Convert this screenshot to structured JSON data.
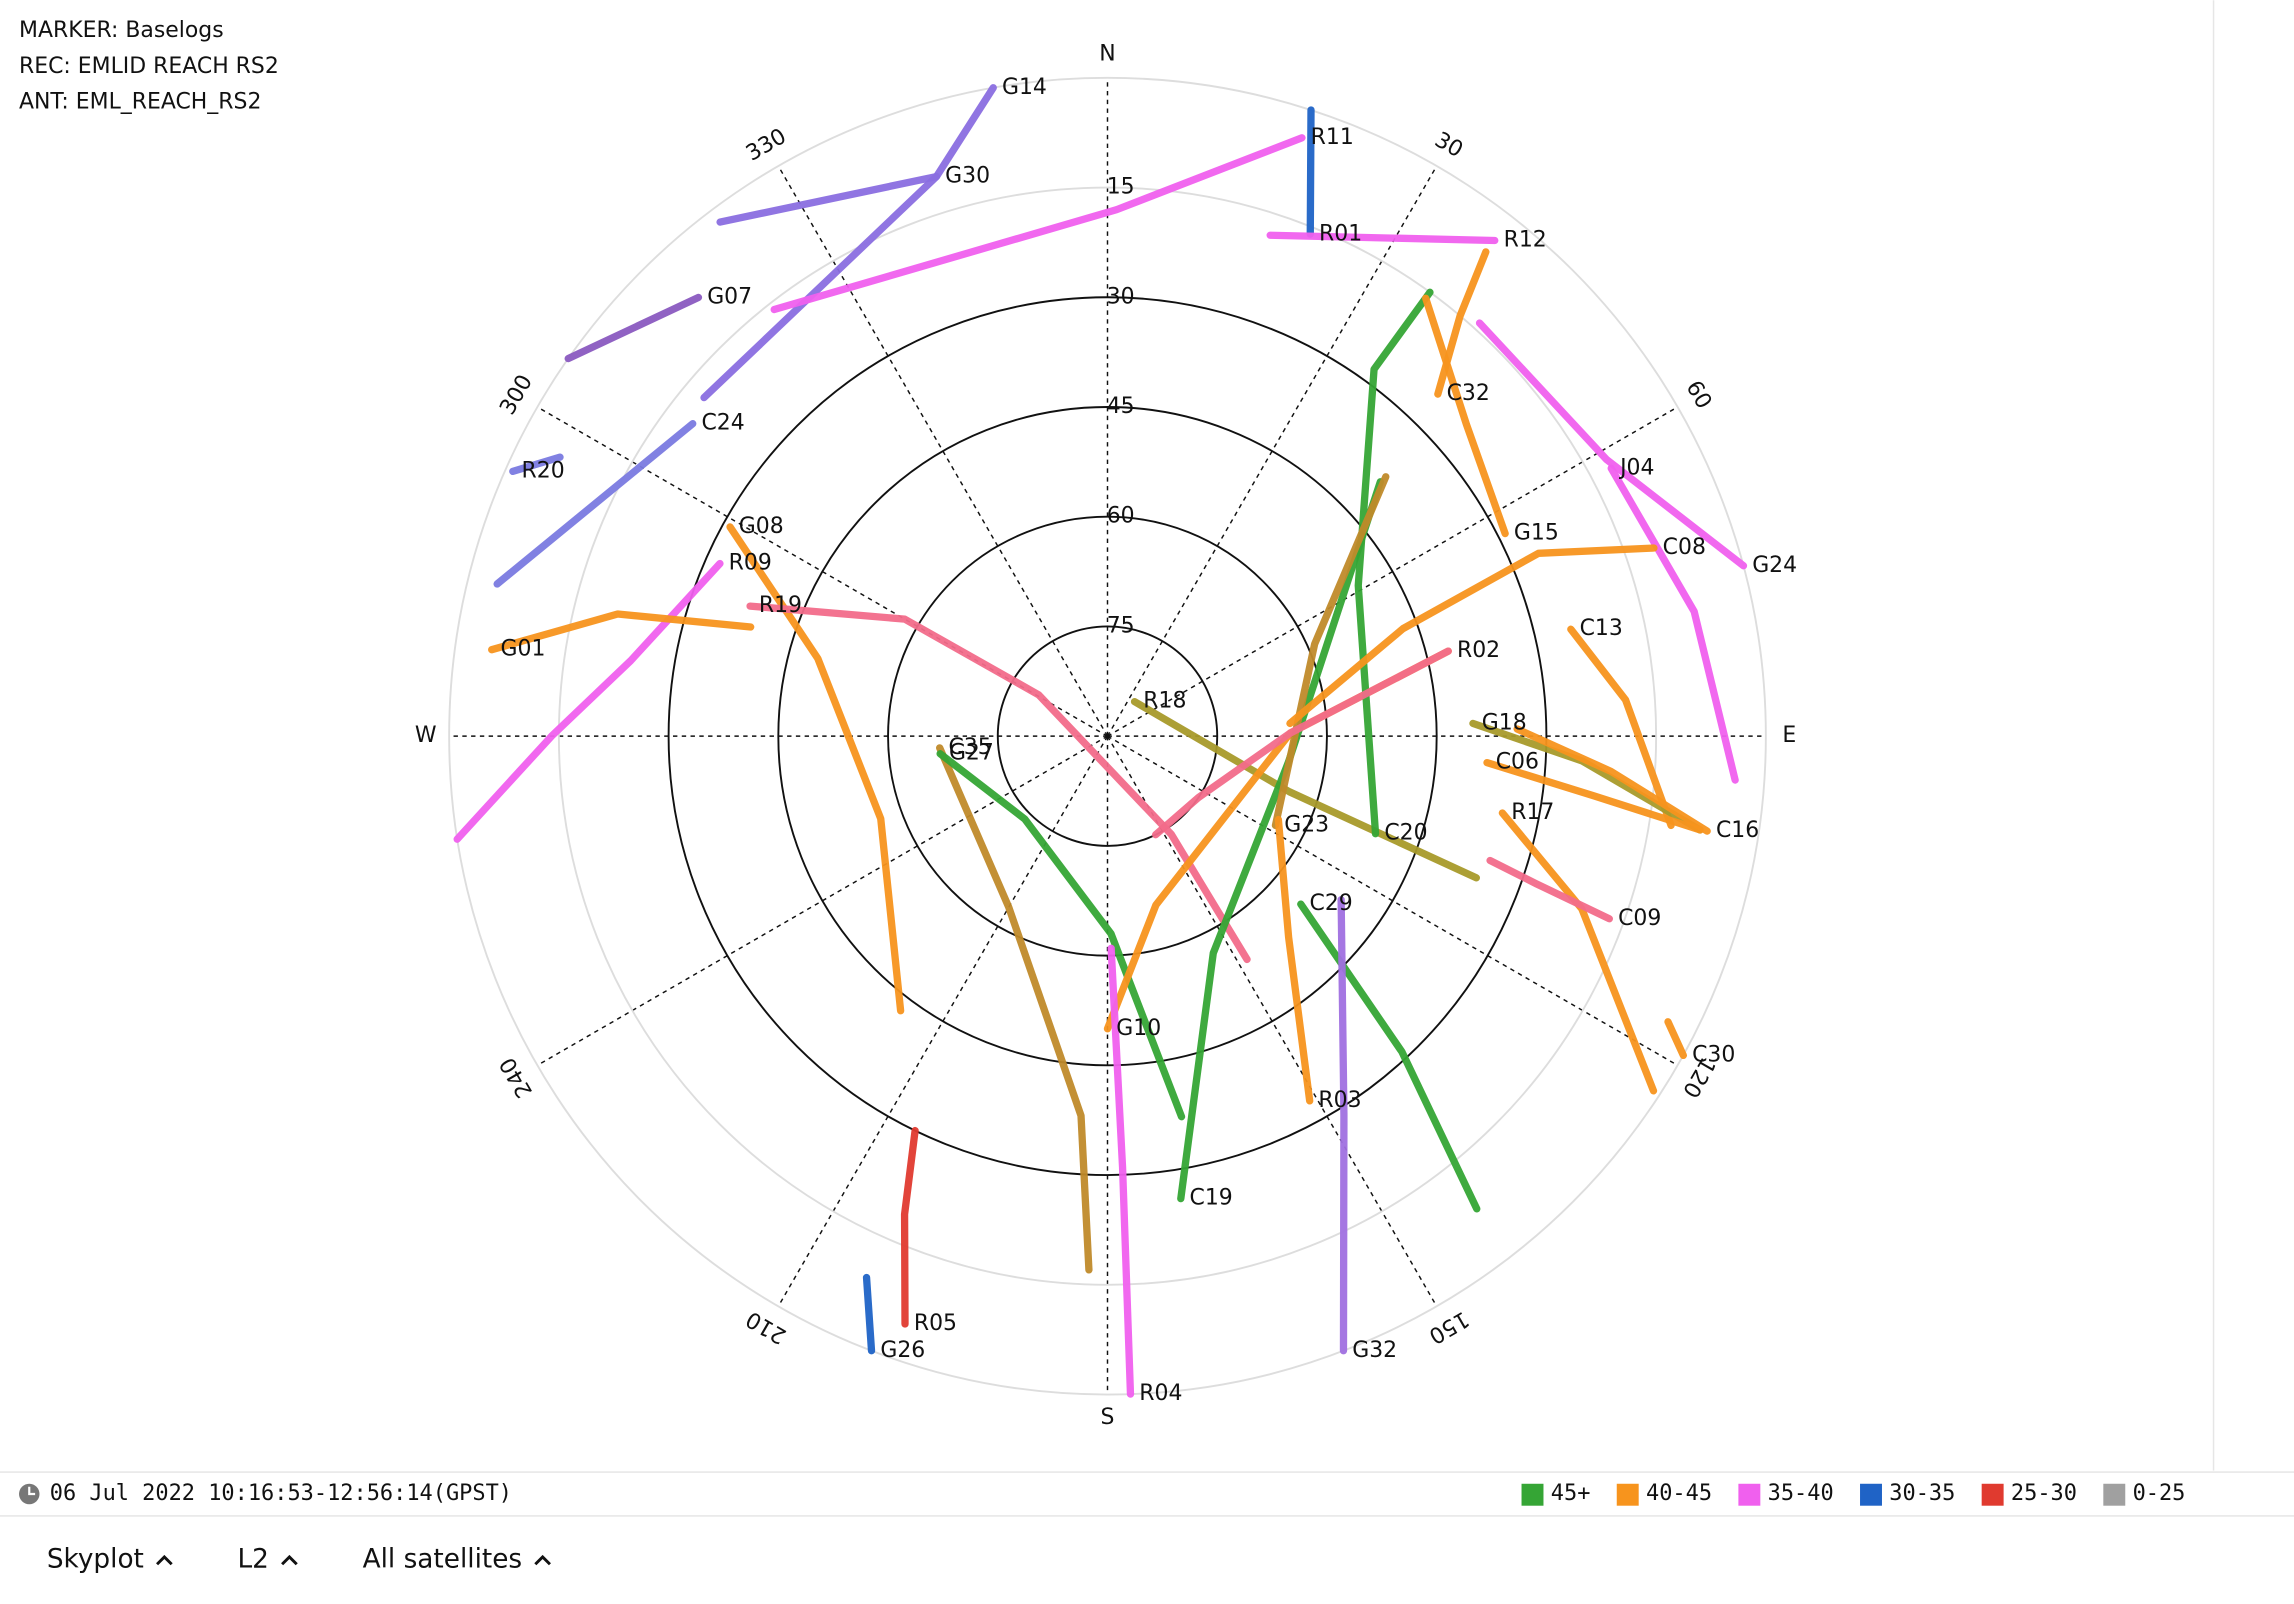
{
  "chart_data": {
    "type": "skyplot",
    "header": [
      "MARKER: Baselogs",
      "REC: EMLID REACH RS2",
      "ANT: EML_REACH_RS2"
    ],
    "ellim": [
      0,
      90
    ],
    "elticks": [
      15,
      30,
      45,
      60,
      75
    ],
    "azticks": [
      {
        "value": 0,
        "label": "N"
      },
      30,
      60,
      {
        "value": 90,
        "label": "E"
      },
      120,
      150,
      {
        "value": 180,
        "label": "S"
      },
      210,
      240,
      {
        "value": 270,
        "label": "W"
      },
      300,
      330
    ],
    "time_range": "06 Jul 2022 10:16:53-12:56:14(GPST)",
    "legend": [
      {
        "label": "45+",
        "color": "#35a535"
      },
      {
        "label": "40-45",
        "color": "#f7941d"
      },
      {
        "label": "35-40",
        "color": "#f060ee"
      },
      {
        "label": "30-35",
        "color": "#1f63c6"
      },
      {
        "label": "25-30",
        "color": "#e03a2f"
      },
      {
        "label": "0-25",
        "color": "#a0a0a0"
      }
    ],
    "controls": [
      "Skyplot",
      "L2",
      "All satellites"
    ],
    "series": [
      {
        "name": "G14",
        "color": "#8a6ee0",
        "az": [
          350,
          343,
          310
        ],
        "el": [
          0,
          10,
          18
        ]
      },
      {
        "name": "G30",
        "color": "#8a6ee0",
        "az": [
          343,
          323
        ],
        "el": [
          10,
          2
        ]
      },
      {
        "name": "R11",
        "color": "#f060ee",
        "az": [
          18,
          1,
          322
        ],
        "el": [
          4,
          18,
          16
        ]
      },
      {
        "name": "R01",
        "color": "#1f63c6",
        "az": [
          22,
          18
        ],
        "el": [
          16,
          0
        ]
      },
      {
        "name": "R12",
        "color": "#f060ee",
        "az": [
          38,
          18
        ],
        "el": [
          4,
          18
        ]
      },
      {
        "name": "G07",
        "color": "#8a5ac0",
        "az": [
          317,
          305
        ],
        "el": [
          8,
          0
        ]
      },
      {
        "name": "C24",
        "color": "#7a7ae0",
        "az": [
          307,
          284
        ],
        "el": [
          19,
          4
        ]
      },
      {
        "name": "R20",
        "color": "#7a7ae0",
        "az": [
          294,
          297
        ],
        "el": [
          1,
          6
        ]
      },
      {
        "name": "G08",
        "color": "#f7941d",
        "az": [
          299,
          285,
          250,
          217
        ],
        "el": [
          31,
          49,
          57,
          43
        ]
      },
      {
        "name": "R09",
        "color": "#f060ee",
        "az": [
          294,
          279,
          270,
          261
        ],
        "el": [
          32,
          24,
          14,
          0
        ]
      },
      {
        "name": "G01",
        "color": "#f7941d",
        "az": [
          278,
          284,
          287
        ],
        "el": [
          5,
          21,
          39
        ]
      },
      {
        "name": "R19",
        "color": "#f26b8a",
        "az": [
          290,
          300,
          301,
          147,
          148
        ],
        "el": [
          38,
          58,
          79,
          74,
          54
        ]
      },
      {
        "name": "C35",
        "color": "#c08a2a",
        "az": [
          266,
          210,
          184,
          182
        ],
        "el": [
          67,
          63,
          38,
          17
        ]
      },
      {
        "name": "G27",
        "color": "#35a535",
        "az": [
          264,
          225,
          179,
          169
        ],
        "el": [
          67,
          74,
          63,
          37
        ]
      },
      {
        "name": "R18",
        "color": "#a89a2a",
        "az": [
          38,
          107,
          111
        ],
        "el": [
          84,
          64,
          36
        ]
      },
      {
        "name": "G10",
        "color": "#f7941d",
        "az": [
          180,
          164,
          89,
          76
        ],
        "el": [
          50,
          66,
          65,
          42
        ]
      },
      {
        "name": "C19",
        "color": "#35a535",
        "az": [
          171,
          154,
          98,
          47
        ],
        "el": [
          26,
          57,
          65,
          39
        ]
      },
      {
        "name": "C20",
        "color": "#35a535",
        "az": [
          110,
          59,
          36,
          36
        ],
        "el": [
          51,
          50,
          28,
          15
        ]
      },
      {
        "name": "G23",
        "color": "#c08a2a",
        "az": [
          118,
          66,
          47
        ],
        "el": [
          64,
          59,
          38
        ]
      },
      {
        "name": "R02",
        "color": "#f26b8a",
        "az": [
          76,
          89,
          124,
          154
        ],
        "el": [
          42,
          65,
          75,
          75
        ]
      },
      {
        "name": "C29",
        "color": "#35a535",
        "az": [
          131,
          137,
          142
        ],
        "el": [
          55,
          31,
          8
        ]
      },
      {
        "name": "R03",
        "color": "#f7941d",
        "az": [
          151,
          138,
          116
        ],
        "el": [
          33,
          53,
          64
        ]
      },
      {
        "name": "G32",
        "color": "#a070e0",
        "az": [
          159,
          148,
          125
        ],
        "el": [
          0,
          29,
          51
        ]
      },
      {
        "name": "R04",
        "color": "#f060ee",
        "az": [
          178,
          178,
          179
        ],
        "el": [
          0,
          31,
          61
        ]
      },
      {
        "name": "G26",
        "color": "#1f63c6",
        "az": [
          201,
          204
        ],
        "el": [
          0,
          9
        ]
      },
      {
        "name": "R05",
        "color": "#e03a2f",
        "az": [
          199,
          203,
          206
        ],
        "el": [
          5,
          19,
          30
        ]
      },
      {
        "name": "C32",
        "color": "#f7941d",
        "az": [
          44,
          40,
          38
        ],
        "el": [
          25,
          15,
          6
        ]
      },
      {
        "name": "J04",
        "color": "#f060ee",
        "az": [
          62,
          78,
          94
        ],
        "el": [
          12,
          8,
          4
        ]
      },
      {
        "name": "G15",
        "color": "#f7941d",
        "az": [
          63,
          49,
          36
        ],
        "el": [
          29,
          25,
          16
        ]
      },
      {
        "name": "C08",
        "color": "#f7941d",
        "az": [
          71,
          67,
          70,
          86
        ],
        "el": [
          11,
          26,
          47,
          65
        ]
      },
      {
        "name": "C13",
        "color": "#f7941d",
        "az": [
          77,
          86,
          99
        ],
        "el": [
          25,
          19,
          12
        ]
      },
      {
        "name": "G18",
        "color": "#a89a2a",
        "az": [
          88,
          93,
          99
        ],
        "el": [
          40,
          25,
          8
        ]
      },
      {
        "name": "C06",
        "color": "#f7941d",
        "az": [
          94,
          97,
          99
        ],
        "el": [
          38,
          23,
          8
        ]
      },
      {
        "name": "C16",
        "color": "#f7941d",
        "az": [
          99,
          94,
          89
        ],
        "el": [
          7,
          21,
          34
        ]
      },
      {
        "name": "R17",
        "color": "#f7941d",
        "az": [
          101,
          110,
          123
        ],
        "el": [
          35,
          21,
          1
        ]
      },
      {
        "name": "C09",
        "color": "#f26b8a",
        "az": [
          110,
          109,
          108
        ],
        "el": [
          17,
          28,
          35
        ]
      },
      {
        "name": "C30",
        "color": "#f7941d",
        "az": [
          119,
          117
        ],
        "el": [
          0,
          4
        ]
      },
      {
        "name": "G24",
        "color": "#f060ee",
        "az": [
          75,
          61,
          42
        ],
        "el": [
          0,
          12,
          14
        ]
      }
    ]
  }
}
